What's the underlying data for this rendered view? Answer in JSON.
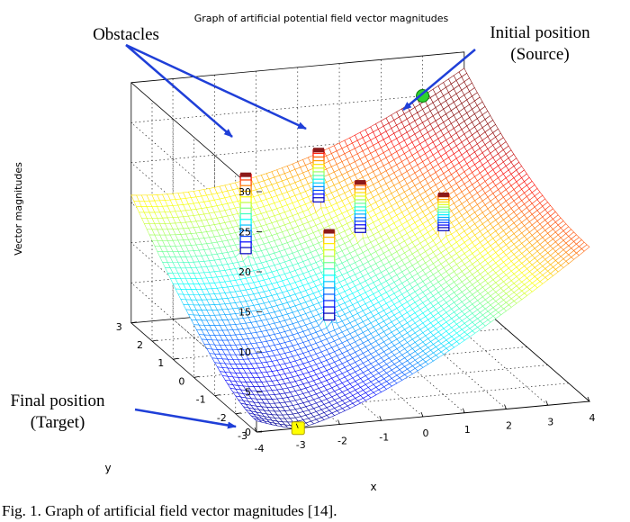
{
  "chart_data": {
    "type": "surface",
    "title": "Graph of artificial potential field vector magnitudes",
    "xlabel": "x",
    "ylabel": "y",
    "zlabel": "Vector magnitudes",
    "xlim": [
      -4,
      4
    ],
    "ylim": [
      -3,
      3
    ],
    "zlim": [
      0,
      30
    ],
    "x_ticks": [
      "-4",
      "-3",
      "-2",
      "-1",
      "0",
      "1",
      "2",
      "3",
      "4"
    ],
    "y_ticks": [
      "-3",
      "-2",
      "-1",
      "0",
      "1",
      "2",
      "3"
    ],
    "z_ticks": [
      "0",
      "5",
      "10",
      "15",
      "20",
      "25",
      "30"
    ],
    "grid": true,
    "colormap": "jet",
    "source": {
      "x": 3,
      "y": 3,
      "z": 25
    },
    "target": {
      "x": -3,
      "y": -3,
      "z": 0
    },
    "obstacles": [
      {
        "x": -2,
        "y": 1.5,
        "peak": 21
      },
      {
        "x": -1,
        "y": -0.5,
        "peak": 18
      },
      {
        "x": 0.0,
        "y": 2.0,
        "peak": 22
      },
      {
        "x": 0.5,
        "y": 1.0,
        "peak": 20
      },
      {
        "x": 2.0,
        "y": 0.0,
        "peak": 20
      }
    ]
  },
  "annotations": {
    "obstacles": "Obstacles",
    "initial_line1": "Initial position",
    "initial_line2": "(Source)",
    "final_line1": "Final position",
    "final_line2": "(Target)"
  },
  "caption": "Fig. 1. Graph of artificial field vector magnitudes [14].",
  "colors": {
    "arrow": "#1f3fd8",
    "source_marker": "#2fd12f",
    "target_marker": "#ffff00"
  }
}
